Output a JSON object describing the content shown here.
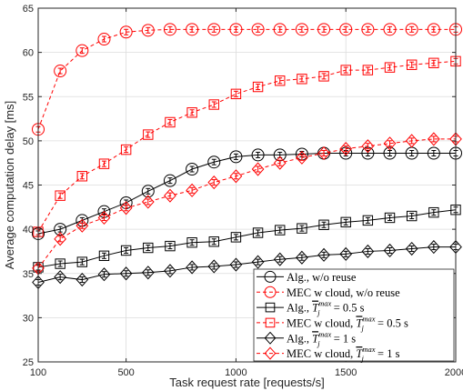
{
  "chart_data": {
    "type": "line",
    "xlabel": "Task request rate [requests/s]",
    "ylabel": "Average computation delay [ms]",
    "xlim": [
      100,
      2000
    ],
    "ylim": [
      25,
      65
    ],
    "xticks": [
      100,
      500,
      1000,
      1500,
      2000
    ],
    "yticks": [
      25,
      30,
      35,
      40,
      45,
      50,
      55,
      60,
      65
    ],
    "grid": true,
    "legend_position": "bottom-right",
    "x": [
      100,
      200,
      300,
      400,
      500,
      600,
      700,
      800,
      900,
      1000,
      1100,
      1200,
      1300,
      1400,
      1500,
      1600,
      1700,
      1800,
      1900,
      2000
    ],
    "series": [
      {
        "name": "Alg., w/o reuse",
        "color": "#000000",
        "marker": "circle",
        "dash": "solid",
        "values": [
          39.5,
          40.0,
          41.0,
          42.0,
          43.0,
          44.3,
          45.5,
          46.8,
          47.6,
          48.2,
          48.4,
          48.4,
          48.5,
          48.6,
          48.6,
          48.6,
          48.6,
          48.6,
          48.6,
          48.6
        ]
      },
      {
        "name": "MEC w cloud, w/o reuse",
        "color": "#ff0000",
        "marker": "circle",
        "dash": "dashed",
        "values": [
          51.3,
          57.9,
          60.2,
          61.5,
          62.3,
          62.5,
          62.6,
          62.6,
          62.6,
          62.6,
          62.6,
          62.6,
          62.6,
          62.6,
          62.6,
          62.6,
          62.6,
          62.6,
          62.6,
          62.6
        ]
      },
      {
        "name": "Alg., Tmax = 0.5 s",
        "color": "#000000",
        "marker": "square",
        "dash": "solid",
        "values": [
          35.7,
          36.1,
          36.3,
          37.0,
          37.6,
          37.9,
          38.1,
          38.5,
          38.6,
          39.1,
          39.6,
          39.9,
          40.1,
          40.5,
          40.8,
          41.0,
          41.3,
          41.5,
          41.9,
          42.2
        ]
      },
      {
        "name": "MEC w cloud, Tmax = 0.5 s",
        "color": "#ff0000",
        "marker": "square",
        "dash": "dashed",
        "values": [
          39.7,
          43.8,
          46.0,
          47.4,
          49.0,
          50.7,
          52.1,
          53.2,
          54.1,
          55.3,
          56.1,
          56.8,
          57.0,
          57.3,
          58.0,
          58.0,
          58.3,
          58.6,
          58.8,
          59.0
        ]
      },
      {
        "name": "Alg., Tmax = 1 s",
        "color": "#000000",
        "marker": "diamond",
        "dash": "solid",
        "values": [
          34.0,
          34.6,
          34.3,
          34.9,
          35.0,
          35.1,
          35.3,
          35.7,
          35.8,
          36.0,
          36.3,
          36.6,
          36.8,
          37.1,
          37.2,
          37.5,
          37.6,
          37.8,
          38.0,
          38.0
        ]
      },
      {
        "name": "MEC w cloud, Tmax = 1 s",
        "color": "#ff0000",
        "marker": "diamond",
        "dash": "dashed",
        "values": [
          35.6,
          38.9,
          40.4,
          41.3,
          42.4,
          43.1,
          43.8,
          44.4,
          45.3,
          46.0,
          46.8,
          47.5,
          48.1,
          48.6,
          49.1,
          49.4,
          49.7,
          50.0,
          50.2,
          50.2
        ]
      }
    ]
  },
  "legend": {
    "entries": [
      {
        "prefix": "Alg., w/o reuse",
        "tmax": ""
      },
      {
        "prefix": "MEC w cloud, w/o reuse",
        "tmax": ""
      },
      {
        "prefix": "Alg., ",
        "tmax": "= 0.5 s"
      },
      {
        "prefix": "MEC w cloud, ",
        "tmax": "= 0.5 s"
      },
      {
        "prefix": "Alg., ",
        "tmax": "= 1 s"
      },
      {
        "prefix": "MEC w cloud, ",
        "tmax": "= 1 s"
      }
    ],
    "symbol_base": "T",
    "symbol_sub": "j",
    "symbol_sup": "max"
  }
}
